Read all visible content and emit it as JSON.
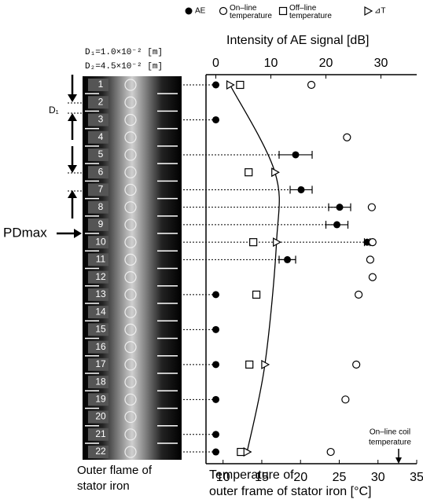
{
  "chart_data": {
    "type": "scatter",
    "x2_label": "Intensity of AE signal [dB]",
    "xlabel_lines": [
      "Temperature  of",
      "outer frame of stator iron [°C]"
    ],
    "strip_caption_lines": [
      "Outer flame of",
      "stator iron"
    ],
    "annotations": {
      "d1": "D₁=1.0×10⁻² [m]",
      "d2": "D₂=4.5×10⁻² [m]",
      "d1_mark": "D₁",
      "pdmax": "PDmax",
      "coil": [
        "On–line coil",
        "temperature"
      ]
    },
    "categories": [
      "1",
      "2",
      "3",
      "4",
      "5",
      "6",
      "7",
      "8",
      "9",
      "10",
      "11",
      "12",
      "13",
      "14",
      "15",
      "16",
      "17",
      "18",
      "19",
      "20",
      "21",
      "22"
    ],
    "xlim": [
      8,
      35
    ],
    "xticks": [
      10,
      15,
      20,
      25,
      30,
      35
    ],
    "x2lim": [
      -1.5,
      36.5
    ],
    "x2ticks": [
      0,
      10,
      20,
      30
    ],
    "series": [
      {
        "name": "AE",
        "axis": "x2",
        "marker": "filled-circle",
        "color": "#000000",
        "values": [
          0,
          null,
          0,
          null,
          14.5,
          null,
          15.5,
          22.5,
          22,
          27.5,
          13,
          null,
          0,
          null,
          0,
          null,
          0,
          null,
          0,
          null,
          0,
          0
        ],
        "errors": [
          null,
          null,
          null,
          null,
          3,
          null,
          2,
          2,
          2,
          0.5,
          1.5,
          null,
          null,
          null,
          null,
          null,
          null,
          null,
          null,
          null,
          null,
          null
        ]
      },
      {
        "name": "On–line temperature",
        "marker": "circle",
        "color": "#000000",
        "values": [
          21.4,
          null,
          null,
          26,
          null,
          null,
          null,
          29.2,
          null,
          29.3,
          29,
          29.3,
          27.5,
          null,
          null,
          null,
          27.2,
          null,
          25.8,
          null,
          null,
          23.9
        ]
      },
      {
        "name": "Off–line temperature",
        "marker": "square",
        "color": "#000000",
        "values": [
          12.2,
          null,
          null,
          null,
          null,
          13.3,
          null,
          null,
          null,
          13.9,
          null,
          null,
          14.3,
          null,
          null,
          null,
          13.4,
          null,
          null,
          null,
          null,
          12.3
        ]
      },
      {
        "name": "⊿T",
        "marker": "triangle",
        "color": "#000000",
        "values": [
          10.9,
          null,
          null,
          null,
          null,
          16.7,
          null,
          null,
          null,
          16.9,
          null,
          null,
          null,
          null,
          null,
          null,
          15.4,
          null,
          null,
          null,
          null,
          13.1
        ]
      }
    ]
  }
}
